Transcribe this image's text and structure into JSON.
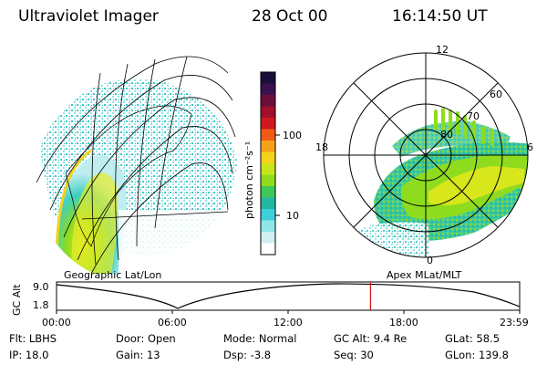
{
  "header": {
    "instrument": "Ultraviolet Imager",
    "date": "28 Oct 00",
    "time": "16:14:50 UT"
  },
  "colorbar": {
    "unit": "photon cm⁻²s⁻¹",
    "ticks": [
      "100",
      "10"
    ],
    "colors": [
      "#1a0f3a",
      "#3a1050",
      "#6a0f3a",
      "#a0102a",
      "#d01820",
      "#f05a14",
      "#f7a11a",
      "#f5d21c",
      "#c8e61c",
      "#8fdc1e",
      "#3fc85a",
      "#22b8a0",
      "#3ed0d8",
      "#8fe6ea",
      "#cfeff2",
      "#ffffff"
    ]
  },
  "left_panel": {
    "label": "Geographic Lat/Lon"
  },
  "right_panel": {
    "label": "Apex MLat/MLT",
    "mlt_labels": {
      "top": "12",
      "left": "18",
      "right": "6",
      "bottom": "0"
    },
    "lat_labels": [
      "60",
      "70",
      "80"
    ]
  },
  "timeline": {
    "axis_label": "GC Alt",
    "y_ticks": [
      "9.0",
      "1.8"
    ],
    "x_ticks": [
      "00:00",
      "06:00",
      "12:00",
      "18:00",
      "23:59"
    ],
    "current_time_fraction": 0.678,
    "marker_color": "#d01010"
  },
  "info": {
    "row1": {
      "flt": "Flt: LBHS",
      "door": "Door: Open",
      "mode": "Mode: Normal",
      "gcalt": "GC Alt: 9.4 Re",
      "glat": "GLat:  58.5"
    },
    "row2": {
      "ip": "IP: 18.0",
      "gain": "Gain: 13",
      "dsp": "Dsp:   -3.8",
      "seq": "Seq: 30",
      "glon": "GLon: 139.8"
    }
  }
}
